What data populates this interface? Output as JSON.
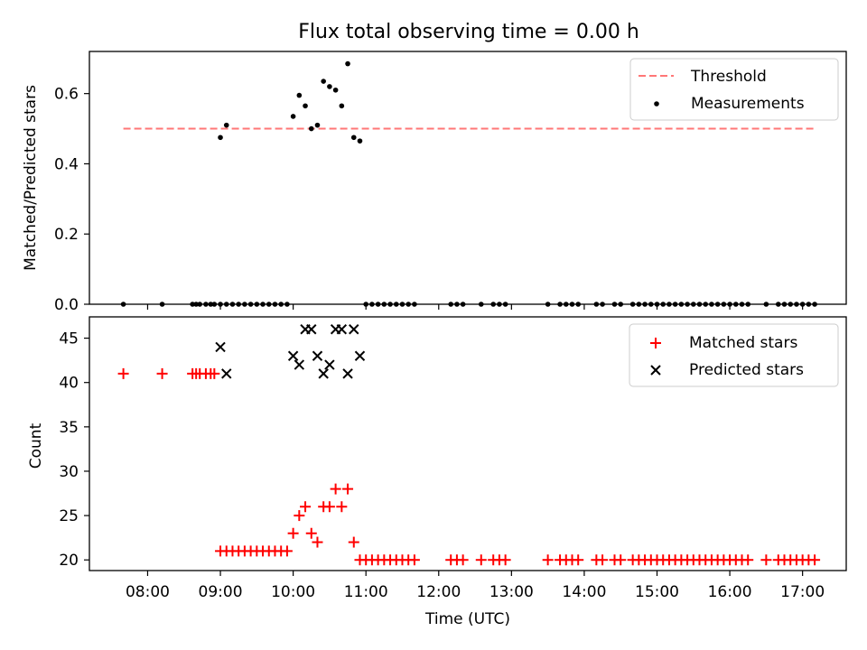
{
  "figure": {
    "title": "Flux total observing time = 0.00 h"
  },
  "chart_data": [
    {
      "type": "scatter",
      "ylabel": "Matched/Predicted stars",
      "xlim": [
        "07:12",
        "17:36"
      ],
      "ylim": [
        0,
        0.72
      ],
      "yticks": [
        0.0,
        0.2,
        0.4,
        0.6
      ],
      "ytick_labels": [
        "0.0",
        "0.2",
        "0.4",
        "0.6"
      ],
      "legend": {
        "position": "top-right",
        "entries": [
          "Threshold",
          "Measurements"
        ]
      },
      "threshold": {
        "name": "Threshold",
        "value": 0.5,
        "x_start": "07:40",
        "x_end": "17:10",
        "color": "#ff7777",
        "style": "dashed"
      },
      "series": [
        {
          "name": "Measurements",
          "color": "#000000",
          "marker": "dot",
          "points": [
            [
              "07:40",
              0
            ],
            [
              "08:12",
              0
            ],
            [
              "08:37",
              0
            ],
            [
              "08:40",
              0
            ],
            [
              "08:43",
              0
            ],
            [
              "08:48",
              0
            ],
            [
              "08:52",
              0
            ],
            [
              "08:55",
              0
            ],
            [
              "09:00",
              0
            ],
            [
              "09:05",
              0
            ],
            [
              "09:10",
              0
            ],
            [
              "09:15",
              0
            ],
            [
              "09:20",
              0
            ],
            [
              "09:25",
              0
            ],
            [
              "09:30",
              0
            ],
            [
              "09:35",
              0
            ],
            [
              "09:40",
              0
            ],
            [
              "09:45",
              0
            ],
            [
              "09:50",
              0
            ],
            [
              "09:55",
              0
            ],
            [
              "09:00",
              0.475
            ],
            [
              "09:05",
              0.51
            ],
            [
              "10:00",
              0.535
            ],
            [
              "10:05",
              0.595
            ],
            [
              "10:10",
              0.565
            ],
            [
              "10:15",
              0.5
            ],
            [
              "10:20",
              0.51
            ],
            [
              "10:25",
              0.635
            ],
            [
              "10:30",
              0.62
            ],
            [
              "10:35",
              0.61
            ],
            [
              "10:40",
              0.565
            ],
            [
              "10:45",
              0.685
            ],
            [
              "10:50",
              0.475
            ],
            [
              "10:55",
              0.465
            ],
            [
              "11:00",
              0
            ],
            [
              "11:05",
              0
            ],
            [
              "11:10",
              0
            ],
            [
              "11:15",
              0
            ],
            [
              "11:20",
              0
            ],
            [
              "11:25",
              0
            ],
            [
              "11:30",
              0
            ],
            [
              "11:35",
              0
            ],
            [
              "11:40",
              0
            ],
            [
              "12:10",
              0
            ],
            [
              "12:15",
              0
            ],
            [
              "12:20",
              0
            ],
            [
              "12:35",
              0
            ],
            [
              "12:45",
              0
            ],
            [
              "12:50",
              0
            ],
            [
              "12:55",
              0
            ],
            [
              "13:30",
              0
            ],
            [
              "13:40",
              0
            ],
            [
              "13:45",
              0
            ],
            [
              "13:50",
              0
            ],
            [
              "13:55",
              0
            ],
            [
              "14:10",
              0
            ],
            [
              "14:15",
              0
            ],
            [
              "14:25",
              0
            ],
            [
              "14:30",
              0
            ],
            [
              "14:40",
              0
            ],
            [
              "14:45",
              0
            ],
            [
              "14:50",
              0
            ],
            [
              "14:55",
              0
            ],
            [
              "15:00",
              0
            ],
            [
              "15:05",
              0
            ],
            [
              "15:10",
              0
            ],
            [
              "15:15",
              0
            ],
            [
              "15:20",
              0
            ],
            [
              "15:25",
              0
            ],
            [
              "15:30",
              0
            ],
            [
              "15:35",
              0
            ],
            [
              "15:40",
              0
            ],
            [
              "15:45",
              0
            ],
            [
              "15:50",
              0
            ],
            [
              "15:55",
              0
            ],
            [
              "16:00",
              0
            ],
            [
              "16:05",
              0
            ],
            [
              "16:10",
              0
            ],
            [
              "16:15",
              0
            ],
            [
              "16:30",
              0
            ],
            [
              "16:40",
              0
            ],
            [
              "16:45",
              0
            ],
            [
              "16:50",
              0
            ],
            [
              "16:55",
              0
            ],
            [
              "17:00",
              0
            ],
            [
              "17:05",
              0
            ],
            [
              "17:10",
              0
            ]
          ]
        }
      ]
    },
    {
      "type": "scatter",
      "xlabel": "Time (UTC)",
      "ylabel": "Count",
      "xlim": [
        "07:12",
        "17:36"
      ],
      "ylim": [
        18.8,
        47.4
      ],
      "xticks": [
        "08:00",
        "09:00",
        "10:00",
        "11:00",
        "12:00",
        "13:00",
        "14:00",
        "15:00",
        "16:00",
        "17:00"
      ],
      "yticks": [
        20,
        25,
        30,
        35,
        40,
        45
      ],
      "ytick_labels": [
        "20",
        "25",
        "30",
        "35",
        "40",
        "45"
      ],
      "legend": {
        "position": "top-right",
        "entries": [
          "Matched stars",
          "Predicted stars"
        ]
      },
      "series": [
        {
          "name": "Matched stars",
          "color": "#ff0000",
          "marker": "plus",
          "points": [
            [
              "07:40",
              41
            ],
            [
              "08:12",
              41
            ],
            [
              "08:37",
              41
            ],
            [
              "08:40",
              41
            ],
            [
              "08:43",
              41
            ],
            [
              "08:48",
              41
            ],
            [
              "08:52",
              41
            ],
            [
              "08:55",
              41
            ],
            [
              "09:00",
              21
            ],
            [
              "09:05",
              21
            ],
            [
              "09:10",
              21
            ],
            [
              "09:15",
              21
            ],
            [
              "09:20",
              21
            ],
            [
              "09:25",
              21
            ],
            [
              "09:30",
              21
            ],
            [
              "09:35",
              21
            ],
            [
              "09:40",
              21
            ],
            [
              "09:45",
              21
            ],
            [
              "09:50",
              21
            ],
            [
              "09:55",
              21
            ],
            [
              "10:00",
              23
            ],
            [
              "10:05",
              25
            ],
            [
              "10:10",
              26
            ],
            [
              "10:15",
              23
            ],
            [
              "10:20",
              22
            ],
            [
              "10:25",
              26
            ],
            [
              "10:30",
              26
            ],
            [
              "10:35",
              28
            ],
            [
              "10:40",
              26
            ],
            [
              "10:45",
              28
            ],
            [
              "10:50",
              22
            ],
            [
              "10:55",
              20
            ],
            [
              "11:00",
              20
            ],
            [
              "11:05",
              20
            ],
            [
              "11:10",
              20
            ],
            [
              "11:15",
              20
            ],
            [
              "11:20",
              20
            ],
            [
              "11:25",
              20
            ],
            [
              "11:30",
              20
            ],
            [
              "11:35",
              20
            ],
            [
              "11:40",
              20
            ],
            [
              "12:10",
              20
            ],
            [
              "12:15",
              20
            ],
            [
              "12:20",
              20
            ],
            [
              "12:35",
              20
            ],
            [
              "12:45",
              20
            ],
            [
              "12:50",
              20
            ],
            [
              "12:55",
              20
            ],
            [
              "13:30",
              20
            ],
            [
              "13:40",
              20
            ],
            [
              "13:45",
              20
            ],
            [
              "13:50",
              20
            ],
            [
              "13:55",
              20
            ],
            [
              "14:10",
              20
            ],
            [
              "14:15",
              20
            ],
            [
              "14:25",
              20
            ],
            [
              "14:30",
              20
            ],
            [
              "14:40",
              20
            ],
            [
              "14:45",
              20
            ],
            [
              "14:50",
              20
            ],
            [
              "14:55",
              20
            ],
            [
              "15:00",
              20
            ],
            [
              "15:05",
              20
            ],
            [
              "15:10",
              20
            ],
            [
              "15:15",
              20
            ],
            [
              "15:20",
              20
            ],
            [
              "15:25",
              20
            ],
            [
              "15:30",
              20
            ],
            [
              "15:35",
              20
            ],
            [
              "15:40",
              20
            ],
            [
              "15:45",
              20
            ],
            [
              "15:50",
              20
            ],
            [
              "15:55",
              20
            ],
            [
              "16:00",
              20
            ],
            [
              "16:05",
              20
            ],
            [
              "16:10",
              20
            ],
            [
              "16:15",
              20
            ],
            [
              "16:30",
              20
            ],
            [
              "16:40",
              20
            ],
            [
              "16:45",
              20
            ],
            [
              "16:50",
              20
            ],
            [
              "16:55",
              20
            ],
            [
              "17:00",
              20
            ],
            [
              "17:05",
              20
            ],
            [
              "17:10",
              20
            ]
          ]
        },
        {
          "name": "Predicted stars",
          "color": "#000000",
          "marker": "x",
          "points": [
            [
              "09:00",
              44
            ],
            [
              "09:05",
              41
            ],
            [
              "10:00",
              43
            ],
            [
              "10:05",
              42
            ],
            [
              "10:10",
              46
            ],
            [
              "10:15",
              46
            ],
            [
              "10:20",
              43
            ],
            [
              "10:25",
              41
            ],
            [
              "10:30",
              42
            ],
            [
              "10:35",
              46
            ],
            [
              "10:40",
              46
            ],
            [
              "10:45",
              41
            ],
            [
              "10:50",
              46
            ],
            [
              "10:55",
              43
            ]
          ]
        }
      ]
    }
  ]
}
